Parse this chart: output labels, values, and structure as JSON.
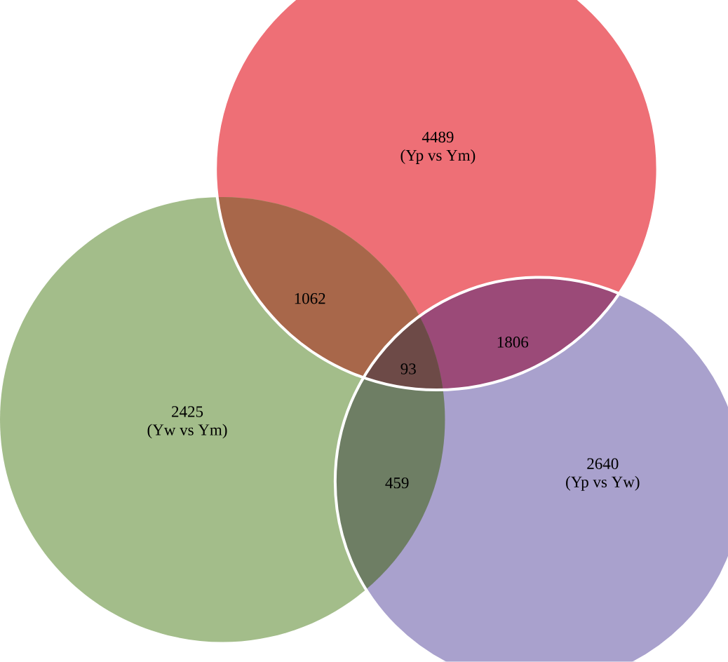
{
  "chart_data": {
    "type": "other",
    "categories": [
      "(Yp vs Ym)",
      "(Yw vs Ym)",
      "(Yp vs Yw)"
    ],
    "values": [
      4489,
      2425,
      2640
    ],
    "colors": [
      "#ee6f76",
      "#a3bd8a",
      "#a9a1cd"
    ],
    "annotations": [
      "1062",
      "1806",
      "459",
      "93"
    ],
    "data_labels": true
  }
}
